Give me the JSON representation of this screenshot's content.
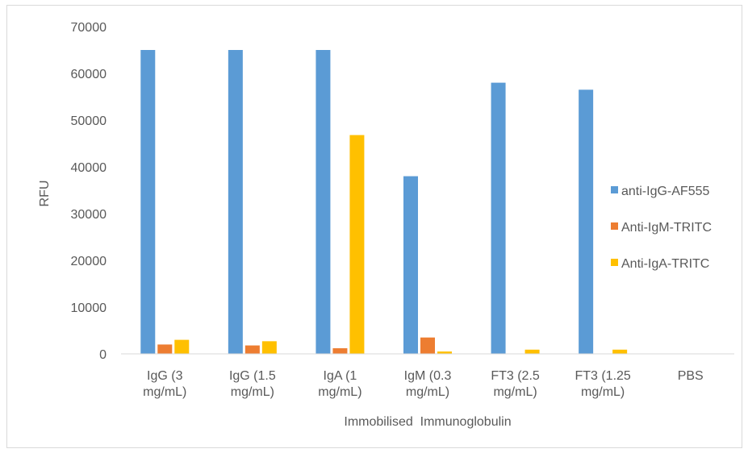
{
  "chart_data": {
    "type": "bar",
    "title": "",
    "xlabel": "Immobilised  Immunoglobulin",
    "ylabel": "RFU",
    "ylim": [
      0,
      70000
    ],
    "yticks": [
      "0",
      "10000",
      "20000",
      "30000",
      "40000",
      "50000",
      "60000",
      "70000"
    ],
    "categories": [
      [
        "IgG (3",
        "mg/mL)"
      ],
      [
        "IgG (1.5",
        "mg/mL)"
      ],
      [
        "IgA (1",
        "mg/mL)"
      ],
      [
        "IgM (0.3",
        "mg/mL)"
      ],
      [
        "FT3 (2.5",
        "mg/mL)"
      ],
      [
        "FT3 (1.25",
        "mg/mL)"
      ],
      [
        "PBS"
      ]
    ],
    "series": [
      {
        "name": "anti-IgG-AF555",
        "color": "#5b9bd5",
        "values": [
          65000,
          65000,
          65000,
          38000,
          58000,
          56500,
          0
        ]
      },
      {
        "name": "Anti-IgM-TRITC",
        "color": "#ed7d31",
        "values": [
          2000,
          1800,
          1200,
          3500,
          0,
          0,
          0
        ]
      },
      {
        "name": "Anti-IgA-TRITC",
        "color": "#ffc000",
        "values": [
          3000,
          2700,
          46800,
          500,
          900,
          900,
          0
        ]
      }
    ],
    "grid": false,
    "legend_position": "right"
  }
}
